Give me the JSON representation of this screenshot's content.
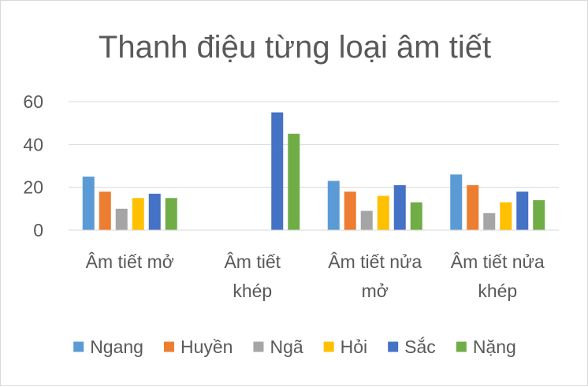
{
  "chart_data": {
    "type": "bar",
    "title": "Thanh điệu từng loại âm tiết",
    "categories": [
      [
        "Âm tiết mở"
      ],
      [
        "Âm tiết",
        "khép"
      ],
      [
        "Âm tiết nửa",
        "mở"
      ],
      [
        "Âm tiết nửa",
        "khép"
      ]
    ],
    "series": [
      {
        "name": "Ngang",
        "color": "#5b9bd5",
        "values": [
          25,
          0,
          23,
          26
        ]
      },
      {
        "name": "Huyền",
        "color": "#ed7d31",
        "values": [
          18,
          0,
          18,
          21
        ]
      },
      {
        "name": "Ngã",
        "color": "#a5a5a5",
        "values": [
          10,
          0,
          9,
          8
        ]
      },
      {
        "name": "Hỏi",
        "color": "#ffc000",
        "values": [
          15,
          0,
          16,
          13
        ]
      },
      {
        "name": "Sắc",
        "color": "#4472c4",
        "values": [
          17,
          55,
          21,
          18
        ]
      },
      {
        "name": "Nặng",
        "color": "#70ad47",
        "values": [
          15,
          45,
          13,
          14
        ]
      }
    ],
    "yticks": [
      0,
      20,
      40,
      60
    ],
    "ylim": [
      0,
      60
    ],
    "grid": true,
    "legend": "bottom",
    "xlabel": "",
    "ylabel": ""
  }
}
